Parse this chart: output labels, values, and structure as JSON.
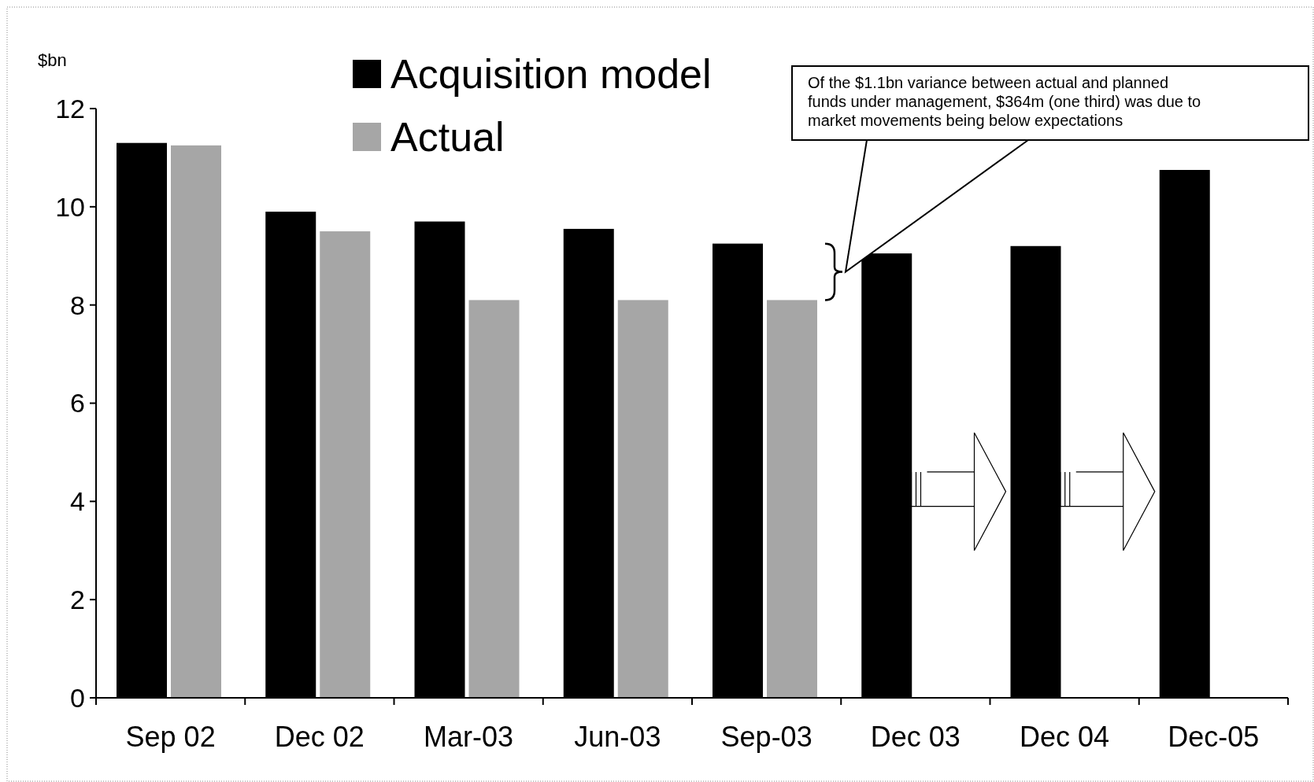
{
  "chart_data": {
    "type": "bar",
    "ylabel": "$bn",
    "categories": [
      "Sep 02",
      "Dec 02",
      "Mar-03",
      "Jun-03",
      "Sep-03",
      "Dec 03",
      "Dec 04",
      "Dec-05"
    ],
    "series": [
      {
        "name": "Acquisition model",
        "color": "#000000",
        "values": [
          11.3,
          9.9,
          9.7,
          9.55,
          9.25,
          9.05,
          9.2,
          10.75
        ]
      },
      {
        "name": "Actual",
        "color": "#a6a6a6",
        "values": [
          11.25,
          9.5,
          8.1,
          8.1,
          8.1,
          null,
          null,
          null
        ]
      }
    ],
    "ylim": [
      0,
      12
    ],
    "yticks": [
      0,
      2,
      4,
      6,
      8,
      10,
      12
    ],
    "grid": false,
    "legend": "top",
    "annotations": [
      "Of the $1.1bn variance between actual and planned funds under management, $364m (one third) was due to market movements being below expectations"
    ]
  }
}
